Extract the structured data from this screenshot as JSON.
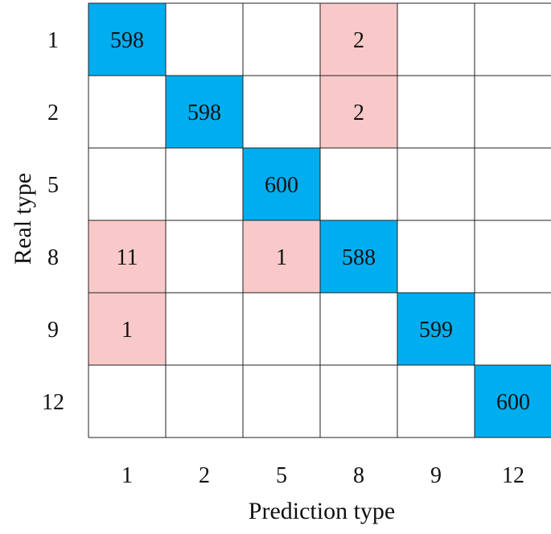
{
  "chart_data": {
    "type": "heatmap",
    "title": "",
    "xlabel": "Prediction type",
    "ylabel": "Real type",
    "x_categories": [
      "1",
      "2",
      "5",
      "8",
      "9",
      "12"
    ],
    "y_categories": [
      "1",
      "2",
      "5",
      "8",
      "9",
      "12"
    ],
    "values": [
      [
        598,
        null,
        null,
        2,
        null,
        null
      ],
      [
        null,
        598,
        null,
        2,
        null,
        null
      ],
      [
        null,
        null,
        600,
        null,
        null,
        null
      ],
      [
        11,
        null,
        1,
        588,
        null,
        null
      ],
      [
        1,
        null,
        null,
        null,
        599,
        null
      ],
      [
        null,
        null,
        null,
        null,
        null,
        600
      ]
    ],
    "colors": {
      "correct": "#00aeef",
      "misclassified": "#f9c9c9",
      "empty": "#ffffff",
      "grid": "#222222"
    },
    "grid": true,
    "legend": "none"
  }
}
